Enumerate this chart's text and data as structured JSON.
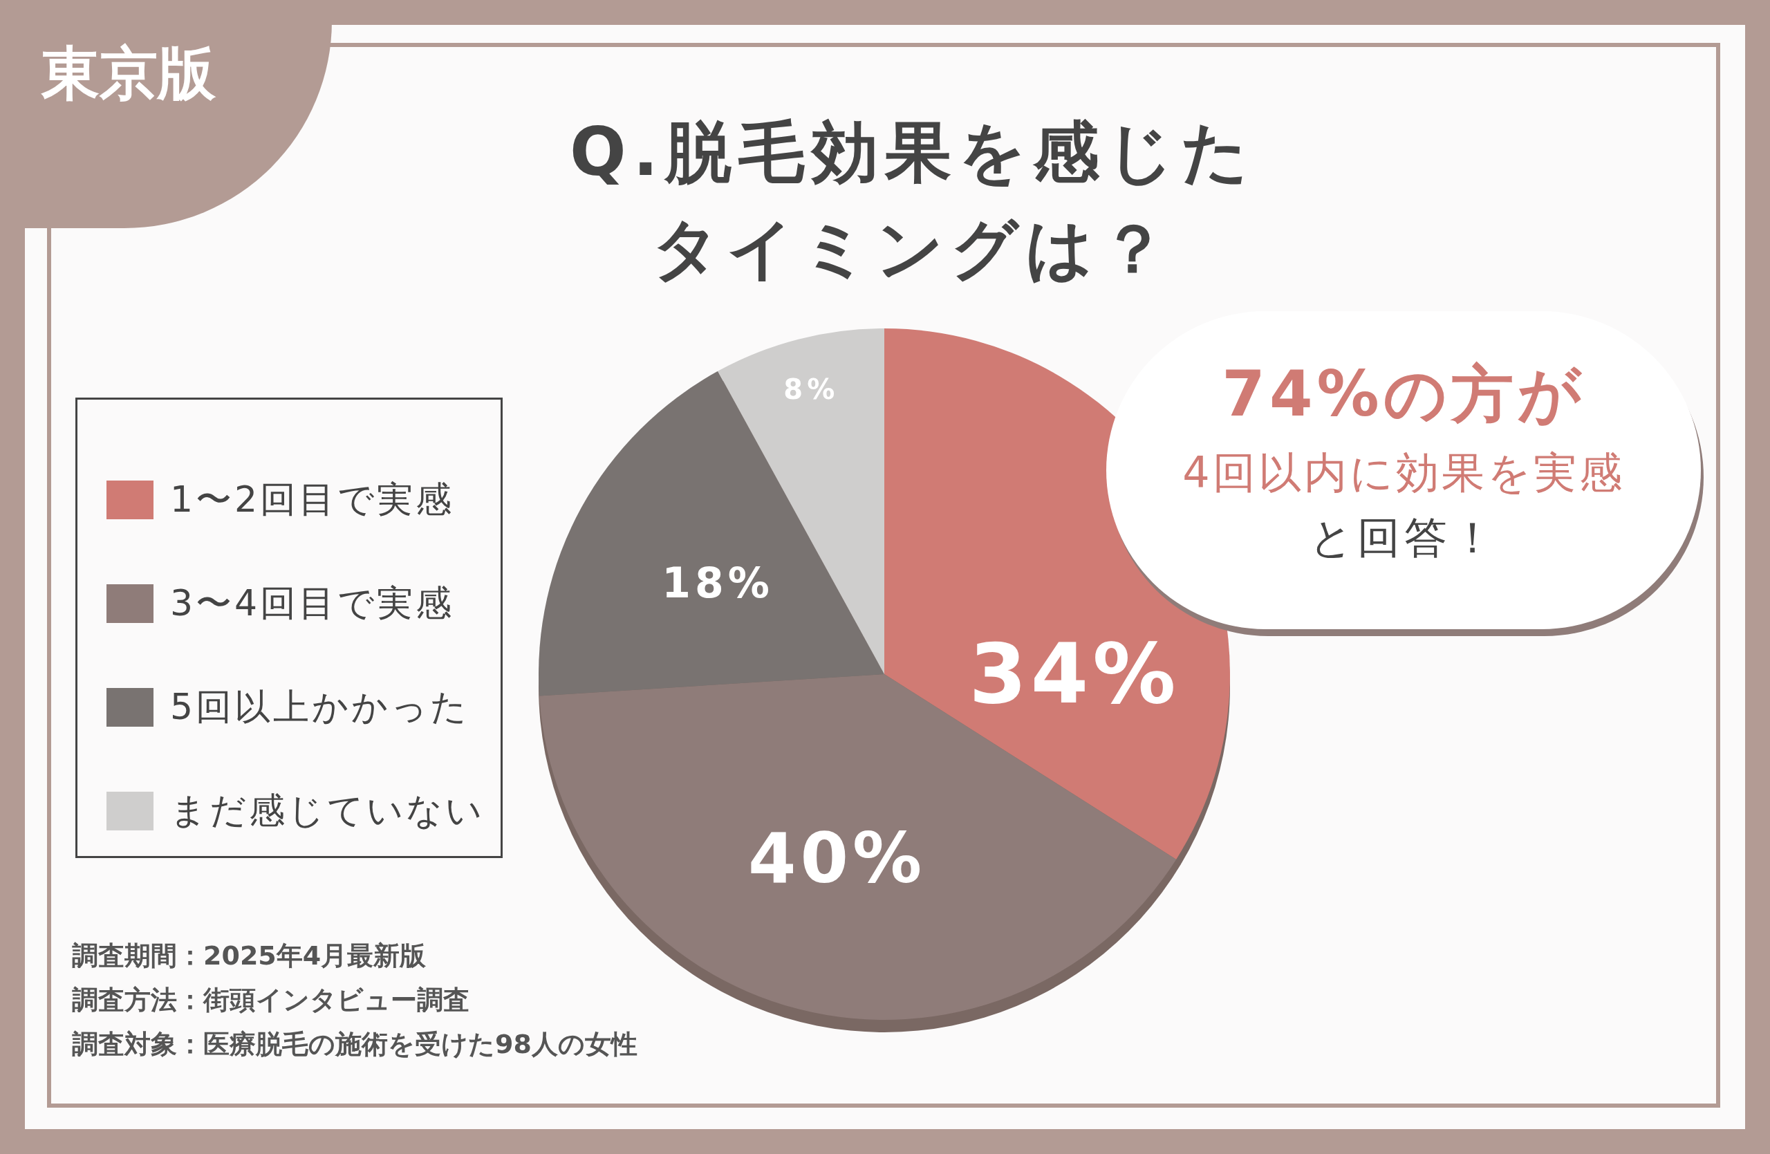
{
  "chart_data": {
    "type": "pie",
    "title": "Q.脱毛効果を感じたタイミングは？",
    "categories": [
      "1〜2回目で実感",
      "3〜4回目で実感",
      "5回以上かかった",
      "まだ感じていない"
    ],
    "values": [
      34,
      40,
      18,
      8
    ],
    "value_labels": [
      "34%",
      "40%",
      "18%",
      "8%"
    ],
    "colors": [
      "#d07b74",
      "#8f7c79",
      "#797371",
      "#cfcecd"
    ],
    "legend": "left",
    "annotations": [
      "東京版",
      "74%の方が",
      "4回以内に効果を実感",
      "と回答！",
      "調査期間：2025年4月最新版",
      "調査方法：街頭インタビュー調査",
      "調査対象：医療脱毛の施術を受けた98人の女性"
    ]
  }
}
